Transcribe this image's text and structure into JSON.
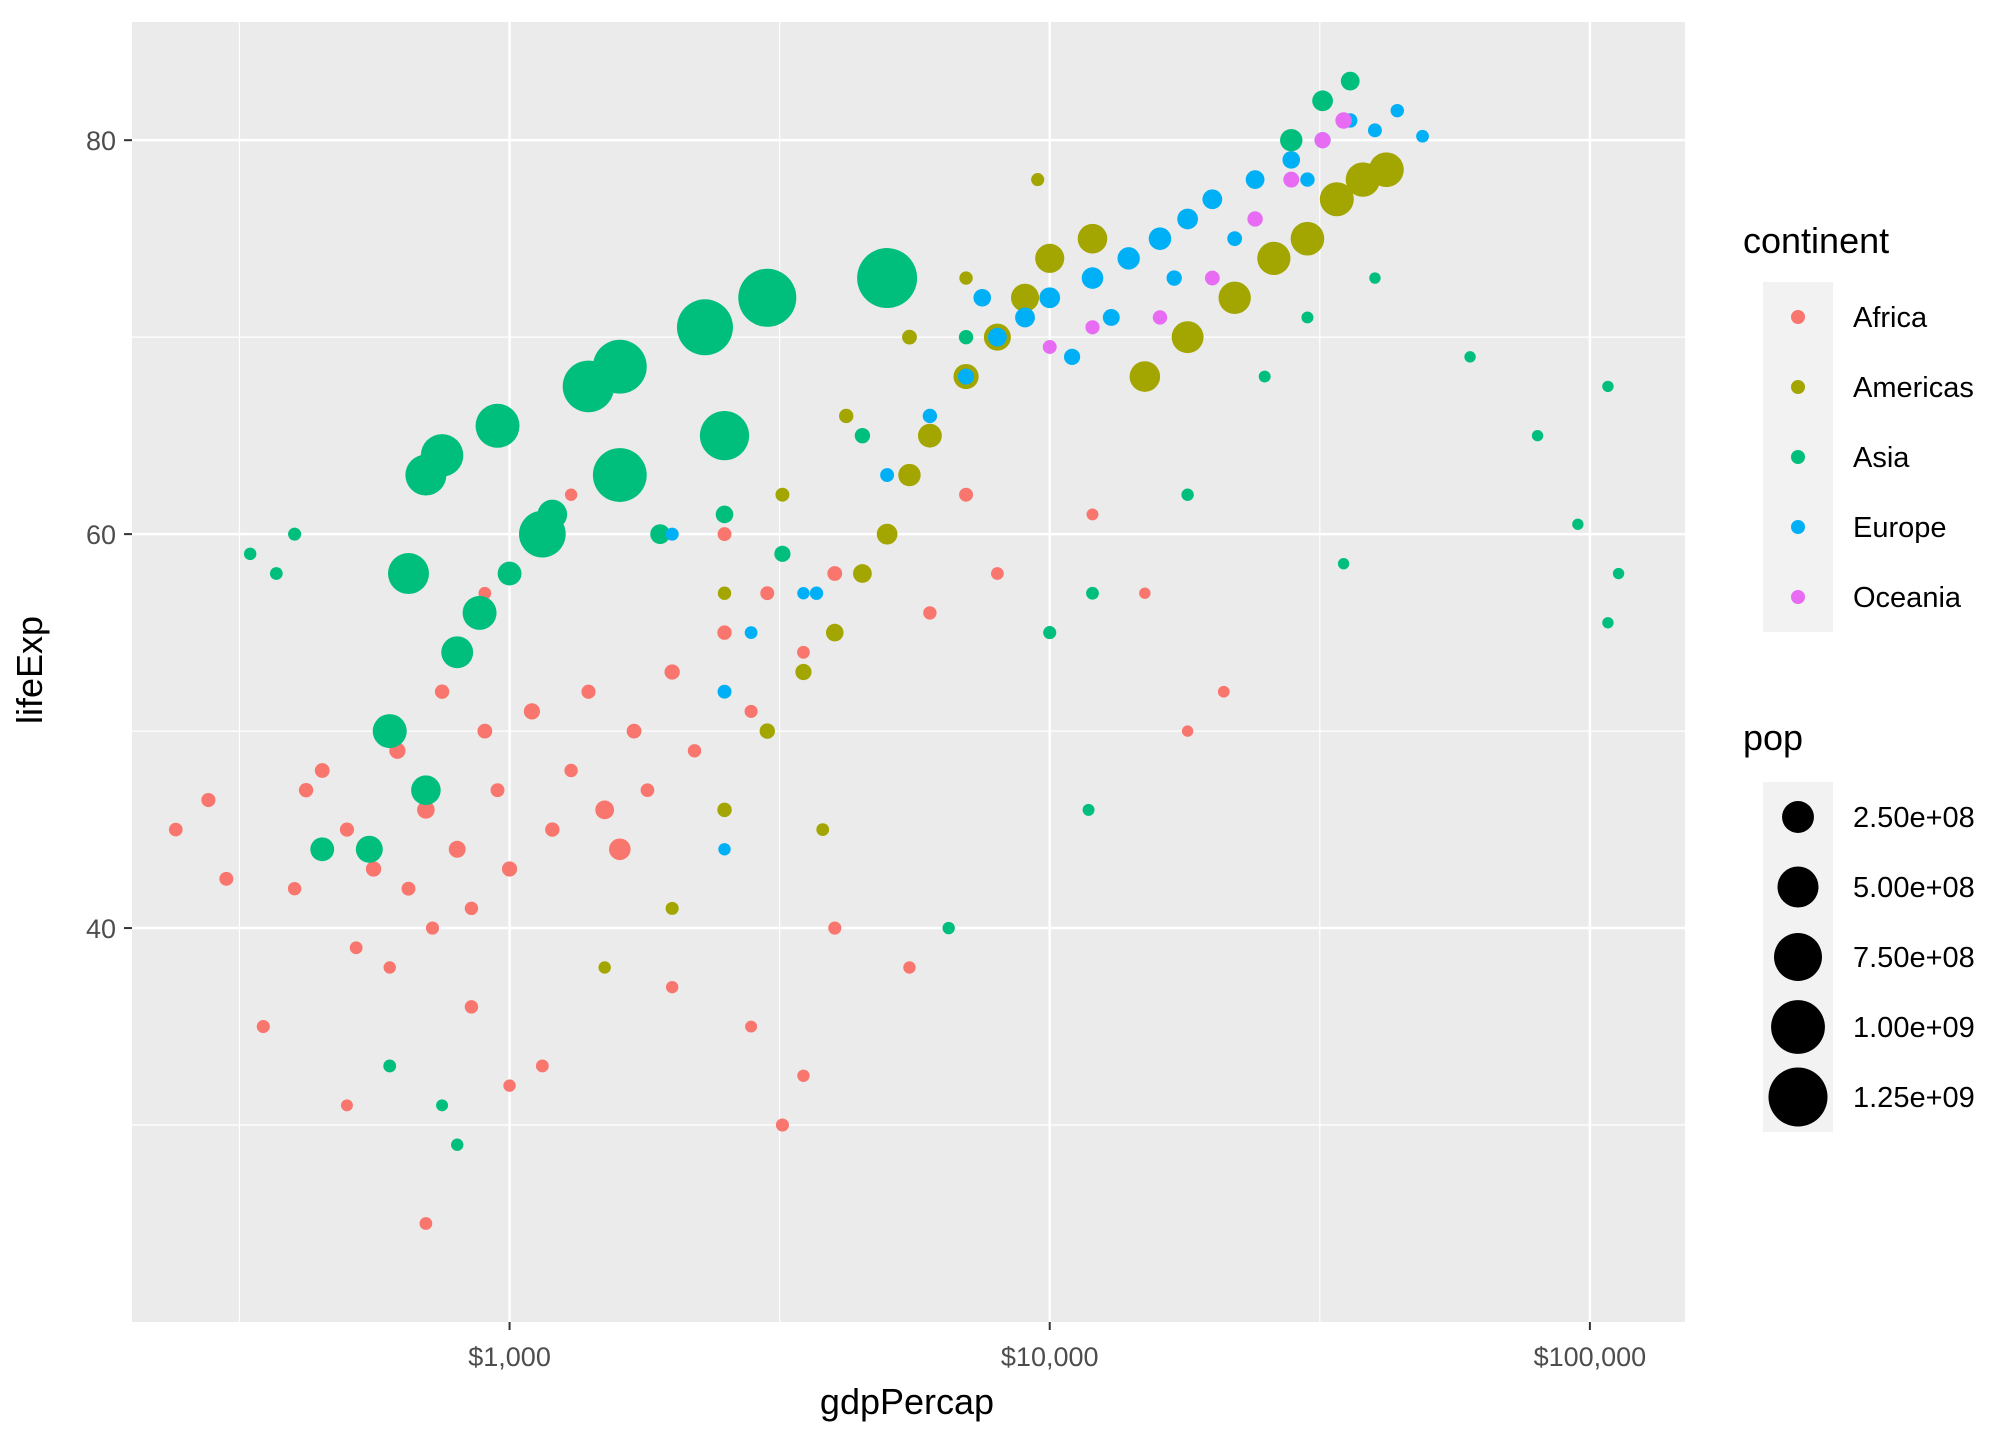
{
  "chart_data": {
    "type": "scatter",
    "title": "",
    "xlabel": "gdpPercap",
    "ylabel": "lifeExp",
    "x_scale": "log10",
    "xlim": [
      200,
      150000
    ],
    "ylim": [
      20,
      86
    ],
    "x_ticks": [
      {
        "value": 1000,
        "label": "$1,000"
      },
      {
        "value": 10000,
        "label": "$10,000"
      },
      {
        "value": 100000,
        "label": "$100,000"
      }
    ],
    "y_ticks": [
      {
        "value": 40,
        "label": "40"
      },
      {
        "value": 60,
        "label": "60"
      },
      {
        "value": 80,
        "label": "80"
      }
    ],
    "grid": true,
    "legend_placement": "right",
    "color_legend": {
      "title": "continent",
      "entries": [
        {
          "name": "Africa",
          "color": "#F8766D"
        },
        {
          "name": "Americas",
          "color": "#A3A500"
        },
        {
          "name": "Asia",
          "color": "#00BF7D"
        },
        {
          "name": "Europe",
          "color": "#00B0F6"
        },
        {
          "name": "Oceania",
          "color": "#E76BF3"
        }
      ]
    },
    "size_legend": {
      "title": "pop",
      "entries": [
        {
          "value": 250000000,
          "label": "2.50e+08"
        },
        {
          "value": 500000000,
          "label": "5.00e+08"
        },
        {
          "value": 750000000,
          "label": "7.50e+08"
        },
        {
          "value": 1000000000,
          "label": "1.00e+09"
        },
        {
          "value": 1250000000,
          "label": "1.25e+09"
        }
      ]
    },
    "series": [
      {
        "name": "Africa",
        "points": [
          [
            241,
            45,
            7000000.0
          ],
          [
            277,
            46.5,
            9000000.0
          ],
          [
            299,
            42.5,
            8000000.0
          ],
          [
            350,
            35,
            5000000.0
          ],
          [
            400,
            42,
            6000000.0
          ],
          [
            420,
            47,
            10000000.0
          ],
          [
            450,
            48,
            12000000.0
          ],
          [
            500,
            45,
            9000000.0
          ],
          [
            520,
            39,
            4000000.0
          ],
          [
            560,
            43,
            15000000.0
          ],
          [
            600,
            38,
            3000000.0
          ],
          [
            620,
            49,
            20000000.0
          ],
          [
            650,
            42,
            8000000.0
          ],
          [
            700,
            46,
            30000000.0
          ],
          [
            720,
            40,
            5000000.0
          ],
          [
            750,
            52,
            10000000.0
          ],
          [
            800,
            44,
            25000000.0
          ],
          [
            850,
            41,
            6000000.0
          ],
          [
            900,
            50,
            12000000.0
          ],
          [
            950,
            47,
            8000000.0
          ],
          [
            1000,
            43,
            14000000.0
          ],
          [
            1100,
            51,
            20000000.0
          ],
          [
            1200,
            45,
            10000000.0
          ],
          [
            1300,
            48,
            6000000.0
          ],
          [
            1400,
            52,
            9000000.0
          ],
          [
            1500,
            46,
            40000000.0
          ],
          [
            1600,
            44,
            70000000.0
          ],
          [
            1700,
            50,
            12000000.0
          ],
          [
            1800,
            47,
            7000000.0
          ],
          [
            2000,
            53,
            15000000.0
          ],
          [
            2200,
            49,
            6000000.0
          ],
          [
            2500,
            55,
            10000000.0
          ],
          [
            2800,
            51,
            5000000.0
          ],
          [
            3000,
            57,
            8000000.0
          ],
          [
            3500,
            54,
            4000000.0
          ],
          [
            4000,
            58,
            12000000.0
          ],
          [
            5000,
            60,
            20000000.0
          ],
          [
            6000,
            56,
            6000000.0
          ],
          [
            7000,
            62,
            8000000.0
          ],
          [
            8000,
            58,
            4000000.0
          ],
          [
            10000,
            55,
            3000000.0
          ],
          [
            12000,
            61,
            2000000.0
          ],
          [
            15000,
            57,
            1000000.0
          ],
          [
            18000,
            50,
            1000000.0
          ],
          [
            21000,
            52,
            1500000.0
          ],
          [
            700,
            25,
            4000000.0
          ],
          [
            3200,
            30,
            5000000.0
          ],
          [
            3500,
            32.5,
            3000000.0
          ],
          [
            1000,
            32,
            3000000.0
          ],
          [
            500,
            31,
            2000000.0
          ],
          [
            600,
            33,
            3000000.0
          ],
          [
            850,
            36,
            6000000.0
          ],
          [
            1150,
            33,
            4000000.0
          ],
          [
            2000,
            37,
            3000000.0
          ],
          [
            2800,
            35,
            2000000.0
          ],
          [
            4000,
            40,
            5000000.0
          ],
          [
            5500,
            38,
            3000000.0
          ],
          [
            900,
            57,
            4000000.0
          ],
          [
            1300,
            62,
            3000000.0
          ],
          [
            2500,
            60,
            8000000.0
          ]
        ]
      },
      {
        "name": "Americas",
        "points": [
          [
            1500,
            38,
            3000000.0
          ],
          [
            2000,
            41,
            5000000.0
          ],
          [
            2500,
            46,
            10000000.0
          ],
          [
            3000,
            50,
            15000000.0
          ],
          [
            3500,
            53,
            20000000.0
          ],
          [
            4000,
            55,
            30000000.0
          ],
          [
            4500,
            58,
            40000000.0
          ],
          [
            5000,
            60,
            60000000.0
          ],
          [
            5500,
            63,
            80000000.0
          ],
          [
            6000,
            65,
            100000000.0
          ],
          [
            7000,
            68,
            120000000.0
          ],
          [
            8000,
            70,
            150000000.0
          ],
          [
            9000,
            72,
            170000000.0
          ],
          [
            10000,
            74,
            190000000.0
          ],
          [
            12000,
            75,
            200000000.0
          ],
          [
            15000,
            68,
            220000000.0
          ],
          [
            18000,
            70,
            250000000.0
          ],
          [
            22000,
            72,
            260000000.0
          ],
          [
            26000,
            74,
            280000000.0
          ],
          [
            30000,
            75,
            290000000.0
          ],
          [
            34000,
            77,
            300000000.0
          ],
          [
            38000,
            78,
            310000000.0
          ],
          [
            42000,
            78.5,
            320000000.0
          ],
          [
            2500,
            57,
            6000000.0
          ],
          [
            3200,
            62,
            8000000.0
          ],
          [
            4200,
            66,
            10000000.0
          ],
          [
            5500,
            70,
            12000000.0
          ],
          [
            7000,
            73,
            6000000.0
          ],
          [
            9500,
            78,
            5000000.0
          ],
          [
            3800,
            45,
            4000000.0
          ]
        ]
      },
      {
        "name": "Asia",
        "points": [
          [
            331,
            59,
            3000000.0
          ],
          [
            370,
            58,
            4000000.0
          ],
          [
            400,
            60,
            5000000.0
          ],
          [
            650,
            58,
            500000000.0
          ],
          [
            750,
            64,
            550000000.0
          ],
          [
            700,
            63,
            500000000.0
          ],
          [
            950,
            65.5,
            600000000.0
          ],
          [
            1150,
            60,
            700000000.0
          ],
          [
            1400,
            67.5,
            900000000.0
          ],
          [
            1600,
            68.5,
            1000000000.0
          ],
          [
            2300,
            70.5,
            1100000000.0
          ],
          [
            3000,
            72,
            1200000000.0
          ],
          [
            5000,
            73,
            1300000000.0
          ],
          [
            1600,
            63,
            1000000000.0
          ],
          [
            2500,
            65,
            800000000.0
          ],
          [
            600,
            50,
            300000000.0
          ],
          [
            700,
            47,
            200000000.0
          ],
          [
            550,
            44,
            150000000.0
          ],
          [
            450,
            44,
            100000000.0
          ],
          [
            880,
            56,
            300000000.0
          ],
          [
            800,
            54,
            250000000.0
          ],
          [
            1200,
            61,
            200000000.0
          ],
          [
            1000,
            58,
            100000000.0
          ],
          [
            1900,
            60,
            50000000.0
          ],
          [
            2500,
            61,
            30000000.0
          ],
          [
            3200,
            59,
            20000000.0
          ],
          [
            4500,
            65,
            15000000.0
          ],
          [
            7000,
            70,
            10000000.0
          ],
          [
            10000,
            55,
            5000000.0
          ],
          [
            12000,
            57,
            4000000.0
          ],
          [
            18000,
            62,
            3000000.0
          ],
          [
            25000,
            68,
            2000000.0
          ],
          [
            30000,
            71,
            2000000.0
          ],
          [
            35000,
            58.5,
            1000000.0
          ],
          [
            40000,
            73,
            1000000.0
          ],
          [
            60000,
            69,
            1000000.0
          ],
          [
            80000,
            65,
            1000000.0
          ],
          [
            95000,
            60.5,
            1000000.0
          ],
          [
            108000,
            67.5,
            1000000.0
          ],
          [
            113000,
            58,
            1000000.0
          ],
          [
            108000,
            55.5,
            1000000.0
          ],
          [
            28000,
            80,
            80000000.0
          ],
          [
            32000,
            82,
            60000000.0
          ],
          [
            36000,
            83,
            40000000.0
          ],
          [
            800,
            29,
            3000000.0
          ],
          [
            750,
            31,
            2000000.0
          ],
          [
            600,
            33,
            4000000.0
          ],
          [
            6500,
            40,
            3000000.0
          ],
          [
            11800,
            46,
            2000000.0
          ]
        ]
      },
      {
        "name": "Europe",
        "points": [
          [
            2000,
            60,
            5000000.0
          ],
          [
            2800,
            55,
            4000000.0
          ],
          [
            3500,
            57,
            3000000.0
          ],
          [
            5000,
            63,
            8000000.0
          ],
          [
            6000,
            66,
            10000000.0
          ],
          [
            7000,
            68,
            20000000.0
          ],
          [
            8000,
            70,
            40000000.0
          ],
          [
            9000,
            71,
            50000000.0
          ],
          [
            10000,
            72,
            60000000.0
          ],
          [
            12000,
            73,
            70000000.0
          ],
          [
            14000,
            74,
            80000000.0
          ],
          [
            16000,
            75,
            82000000.0
          ],
          [
            18000,
            76,
            60000000.0
          ],
          [
            20000,
            77,
            50000000.0
          ],
          [
            24000,
            78,
            40000000.0
          ],
          [
            28000,
            79,
            30000000.0
          ],
          [
            32000,
            80,
            20000000.0
          ],
          [
            36000,
            81,
            10000000.0
          ],
          [
            40000,
            80.5,
            8000000.0
          ],
          [
            44000,
            81.5,
            6000000.0
          ],
          [
            49000,
            80.2,
            4000000.0
          ],
          [
            7500,
            72,
            30000000.0
          ],
          [
            11000,
            69,
            20000000.0
          ],
          [
            13000,
            71,
            25000000.0
          ],
          [
            17000,
            73,
            15000000.0
          ],
          [
            22000,
            75,
            12000000.0
          ],
          [
            30000,
            78,
            10000000.0
          ],
          [
            3700,
            57,
            6000000.0
          ],
          [
            2500,
            44,
            3000000.0
          ],
          [
            2500,
            52,
            8000000.0
          ]
        ]
      },
      {
        "name": "Oceania",
        "points": [
          [
            10000,
            69.5,
            8000000.0
          ],
          [
            12000,
            70.5,
            9000000.0
          ],
          [
            16000,
            71,
            10000000.0
          ],
          [
            20000,
            73,
            12000000.0
          ],
          [
            24000,
            76,
            15000000.0
          ],
          [
            28000,
            78,
            18000000.0
          ],
          [
            32000,
            80,
            20000000.0
          ],
          [
            35000,
            81,
            22000000.0
          ]
        ]
      }
    ]
  }
}
